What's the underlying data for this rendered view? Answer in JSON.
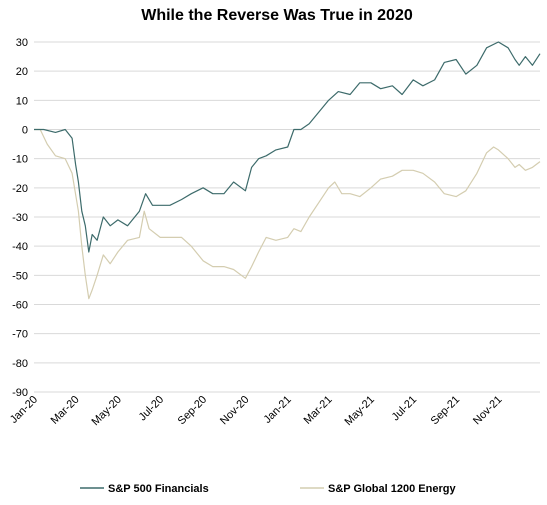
{
  "chart_data": {
    "type": "line",
    "title": "While the Reverse Was True in 2020",
    "xlabel": "",
    "ylabel": "",
    "ylim": [
      -90,
      30
    ],
    "y_ticks": [
      30,
      20,
      10,
      0,
      -10,
      -20,
      -30,
      -40,
      -50,
      -60,
      -70,
      -80,
      -90
    ],
    "x_tick_labels": [
      "Jan-20",
      "Mar-20",
      "May-20",
      "Jul-20",
      "Sep-20",
      "Nov-20",
      "Jan-21",
      "Mar-21",
      "May-21",
      "Jul-21",
      "Sep-21",
      "Nov-21"
    ],
    "x_range": [
      "2020-01-01",
      "2021-12-31"
    ],
    "grid": "horizontal",
    "legend_position": "bottom",
    "series": [
      {
        "name": "S&P 500 Financials",
        "color": "#3d6b6b",
        "points": [
          [
            "2020-01-01",
            0
          ],
          [
            "2020-01-15",
            0
          ],
          [
            "2020-02-01",
            -1
          ],
          [
            "2020-02-15",
            0
          ],
          [
            "2020-02-25",
            -3
          ],
          [
            "2020-03-01",
            -12
          ],
          [
            "2020-03-05",
            -18
          ],
          [
            "2020-03-10",
            -28
          ],
          [
            "2020-03-15",
            -33
          ],
          [
            "2020-03-20",
            -42
          ],
          [
            "2020-03-25",
            -36
          ],
          [
            "2020-04-01",
            -38
          ],
          [
            "2020-04-10",
            -30
          ],
          [
            "2020-04-20",
            -33
          ],
          [
            "2020-05-01",
            -31
          ],
          [
            "2020-05-15",
            -33
          ],
          [
            "2020-06-01",
            -28
          ],
          [
            "2020-06-10",
            -22
          ],
          [
            "2020-06-20",
            -26
          ],
          [
            "2020-07-01",
            -26
          ],
          [
            "2020-07-15",
            -26
          ],
          [
            "2020-08-01",
            -24
          ],
          [
            "2020-08-15",
            -22
          ],
          [
            "2020-09-01",
            -20
          ],
          [
            "2020-09-15",
            -22
          ],
          [
            "2020-10-01",
            -22
          ],
          [
            "2020-10-15",
            -18
          ],
          [
            "2020-11-01",
            -21
          ],
          [
            "2020-11-10",
            -13
          ],
          [
            "2020-11-20",
            -10
          ],
          [
            "2020-12-01",
            -9
          ],
          [
            "2020-12-15",
            -7
          ],
          [
            "2021-01-01",
            -6
          ],
          [
            "2021-01-10",
            0
          ],
          [
            "2021-01-20",
            0
          ],
          [
            "2021-02-01",
            2
          ],
          [
            "2021-02-15",
            6
          ],
          [
            "2021-03-01",
            10
          ],
          [
            "2021-03-15",
            13
          ],
          [
            "2021-04-01",
            12
          ],
          [
            "2021-04-15",
            16
          ],
          [
            "2021-05-01",
            16
          ],
          [
            "2021-05-15",
            14
          ],
          [
            "2021-06-01",
            15
          ],
          [
            "2021-06-15",
            12
          ],
          [
            "2021-07-01",
            17
          ],
          [
            "2021-07-15",
            15
          ],
          [
            "2021-08-01",
            17
          ],
          [
            "2021-08-15",
            23
          ],
          [
            "2021-09-01",
            24
          ],
          [
            "2021-09-15",
            19
          ],
          [
            "2021-10-01",
            22
          ],
          [
            "2021-10-15",
            28
          ],
          [
            "2021-11-01",
            30
          ],
          [
            "2021-11-15",
            28
          ],
          [
            "2021-11-25",
            24
          ],
          [
            "2021-12-01",
            22
          ],
          [
            "2021-12-10",
            25
          ],
          [
            "2021-12-20",
            22
          ],
          [
            "2021-12-31",
            26
          ]
        ]
      },
      {
        "name": "S&P Global 1200 Energy",
        "color": "#d4cdb0",
        "points": [
          [
            "2020-01-01",
            0
          ],
          [
            "2020-01-10",
            0
          ],
          [
            "2020-01-20",
            -5
          ],
          [
            "2020-02-01",
            -9
          ],
          [
            "2020-02-15",
            -10
          ],
          [
            "2020-02-25",
            -15
          ],
          [
            "2020-03-05",
            -28
          ],
          [
            "2020-03-10",
            -40
          ],
          [
            "2020-03-15",
            -50
          ],
          [
            "2020-03-20",
            -58
          ],
          [
            "2020-03-25",
            -55
          ],
          [
            "2020-04-01",
            -50
          ],
          [
            "2020-04-10",
            -43
          ],
          [
            "2020-04-20",
            -46
          ],
          [
            "2020-05-01",
            -42
          ],
          [
            "2020-05-15",
            -38
          ],
          [
            "2020-06-01",
            -37
          ],
          [
            "2020-06-08",
            -28
          ],
          [
            "2020-06-15",
            -34
          ],
          [
            "2020-07-01",
            -37
          ],
          [
            "2020-07-15",
            -37
          ],
          [
            "2020-08-01",
            -37
          ],
          [
            "2020-08-15",
            -40
          ],
          [
            "2020-09-01",
            -45
          ],
          [
            "2020-09-15",
            -47
          ],
          [
            "2020-10-01",
            -47
          ],
          [
            "2020-10-15",
            -48
          ],
          [
            "2020-11-01",
            -51
          ],
          [
            "2020-11-10",
            -47
          ],
          [
            "2020-11-20",
            -42
          ],
          [
            "2020-12-01",
            -37
          ],
          [
            "2020-12-15",
            -38
          ],
          [
            "2021-01-01",
            -37
          ],
          [
            "2021-01-10",
            -34
          ],
          [
            "2021-01-20",
            -35
          ],
          [
            "2021-02-01",
            -30
          ],
          [
            "2021-02-15",
            -25
          ],
          [
            "2021-03-01",
            -20
          ],
          [
            "2021-03-10",
            -18
          ],
          [
            "2021-03-20",
            -22
          ],
          [
            "2021-04-01",
            -22
          ],
          [
            "2021-04-15",
            -23
          ],
          [
            "2021-05-01",
            -20
          ],
          [
            "2021-05-15",
            -17
          ],
          [
            "2021-06-01",
            -16
          ],
          [
            "2021-06-15",
            -14
          ],
          [
            "2021-07-01",
            -14
          ],
          [
            "2021-07-15",
            -15
          ],
          [
            "2021-08-01",
            -18
          ],
          [
            "2021-08-15",
            -22
          ],
          [
            "2021-09-01",
            -23
          ],
          [
            "2021-09-15",
            -21
          ],
          [
            "2021-10-01",
            -15
          ],
          [
            "2021-10-15",
            -8
          ],
          [
            "2021-10-25",
            -6
          ],
          [
            "2021-11-01",
            -7
          ],
          [
            "2021-11-15",
            -10
          ],
          [
            "2021-11-25",
            -13
          ],
          [
            "2021-12-01",
            -12
          ],
          [
            "2021-12-10",
            -14
          ],
          [
            "2021-12-20",
            -13
          ],
          [
            "2021-12-31",
            -11
          ]
        ]
      }
    ]
  }
}
